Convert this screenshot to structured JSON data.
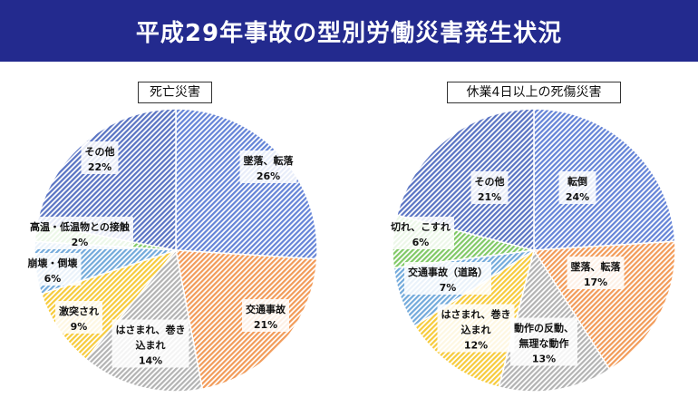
{
  "page_title": "平成29年事故の型別労働災害発生状況",
  "chart_data": [
    {
      "type": "pie",
      "title": "死亡災害",
      "slices": [
        {
          "label": "墜落、転落",
          "value": 26,
          "display": "26%",
          "color": "#4a6fd0"
        },
        {
          "label": "交通事故",
          "value": 21,
          "display": "21%",
          "color": "#f08a3c"
        },
        {
          "label": "はさまれ、巻き込まれ",
          "value": 14,
          "display": "14%",
          "color": "#a6a6a6"
        },
        {
          "label": "激突され",
          "value": 9,
          "display": "9%",
          "color": "#f5c21a"
        },
        {
          "label": "崩壊・倒壊",
          "value": 6,
          "display": "6%",
          "color": "#5b9bd5"
        },
        {
          "label": "高温・低温物との接触",
          "value": 2,
          "display": "2%",
          "color": "#6abf4b"
        },
        {
          "label": "その他",
          "value": 22,
          "display": "22%",
          "color": "#3d5cb8"
        }
      ]
    },
    {
      "type": "pie",
      "title": "休業4日以上の死傷災害",
      "slices": [
        {
          "label": "転倒",
          "value": 24,
          "display": "24%",
          "color": "#4a6fd0"
        },
        {
          "label": "墜落、転落",
          "value": 17,
          "display": "17%",
          "color": "#f08a3c"
        },
        {
          "label": "動作の反動、無理な動作",
          "value": 13,
          "display": "13%",
          "color": "#a6a6a6"
        },
        {
          "label": "はさまれ、巻き込まれ",
          "value": 12,
          "display": "12%",
          "color": "#f5c21a"
        },
        {
          "label": "交通事故（道路）",
          "value": 7,
          "display": "7%",
          "color": "#5b9bd5"
        },
        {
          "label": "切れ、こすれ",
          "value": 6,
          "display": "6%",
          "color": "#6abf4b"
        },
        {
          "label": "その他",
          "value": 21,
          "display": "21%",
          "color": "#3d5cb8"
        }
      ]
    }
  ]
}
